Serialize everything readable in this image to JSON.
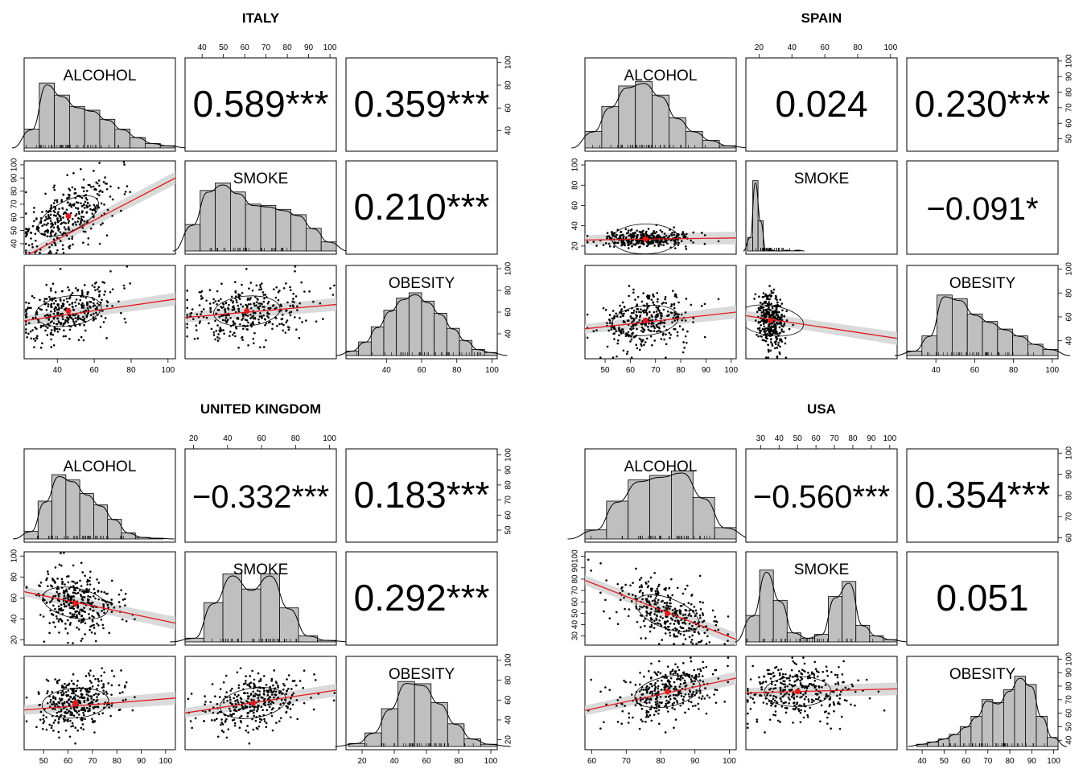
{
  "chart_data": [
    {
      "type": "scatter",
      "title": "ITALY",
      "variables": [
        "ALCOHOL",
        "SMOKE",
        "OBESITY"
      ],
      "correlations": [
        {
          "pair": [
            "ALCOHOL",
            "SMOKE"
          ],
          "label": "0.589***"
        },
        {
          "pair": [
            "ALCOHOL",
            "OBESITY"
          ],
          "label": "0.359***"
        },
        {
          "pair": [
            "SMOKE",
            "OBESITY"
          ],
          "label": "0.210***"
        }
      ],
      "axes": {
        "ALCOHOL": {
          "range": [
            22,
            104
          ],
          "ticks": [
            40,
            60,
            80,
            100
          ]
        },
        "SMOKE": {
          "range": [
            32,
            103
          ],
          "ticks": [
            40,
            50,
            60,
            70,
            80,
            90,
            100
          ]
        },
        "OBESITY": {
          "range": [
            17,
            103
          ],
          "ticks": [
            40,
            60,
            80,
            100
          ]
        }
      },
      "dist": {
        "ALCOHOL": {
          "mean": 46,
          "sd": 13
        },
        "SMOKE": {
          "mean": 61,
          "sd": 14
        },
        "OBESITY": {
          "mean": 61,
          "sd": 14
        }
      },
      "histograms": {
        "ALCOHOL": [
          0.25,
          0.86,
          0.7,
          0.55,
          0.5,
          0.38,
          0.25,
          0.14,
          0.06,
          0.03
        ],
        "SMOKE": [
          0.35,
          0.8,
          0.9,
          0.78,
          0.62,
          0.6,
          0.55,
          0.48,
          0.3,
          0.12
        ],
        "OBESITY": [
          0.06,
          0.18,
          0.38,
          0.6,
          0.76,
          0.83,
          0.72,
          0.56,
          0.36,
          0.2,
          0.08,
          0.04
        ]
      },
      "fit": {
        "ALCOHOL-SMOKE": [
          30,
          90
        ],
        "ALCOHOL-OBESITY": [
          52,
          72
        ],
        "SMOKE-OBESITY": [
          55,
          67
        ]
      },
      "centroid": {
        "ALCOHOL": 46,
        "SMOKE": 61,
        "OBESITY": 61
      },
      "seed": 11
    },
    {
      "type": "scatter",
      "title": "SPAIN",
      "variables": [
        "ALCOHOL",
        "SMOKE",
        "OBESITY"
      ],
      "correlations": [
        {
          "pair": [
            "ALCOHOL",
            "SMOKE"
          ],
          "label": "0.024"
        },
        {
          "pair": [
            "ALCOHOL",
            "OBESITY"
          ],
          "label": "0.230***"
        },
        {
          "pair": [
            "SMOKE",
            "OBESITY"
          ],
          "label": "−0.091*"
        }
      ],
      "axes": {
        "ALCOHOL": {
          "range": [
            42,
            102
          ],
          "ticks": [
            50,
            60,
            70,
            80,
            90,
            100
          ]
        },
        "SMOKE": {
          "range": [
            12,
            104
          ],
          "ticks": [
            20,
            40,
            60,
            80,
            100
          ]
        },
        "OBESITY": {
          "range": [
            25,
            103
          ],
          "ticks": [
            40,
            60,
            80,
            100
          ]
        }
      },
      "dist": {
        "ALCOHOL": {
          "mean": 66,
          "sd": 9
        },
        "SMOKE": {
          "mean": 27,
          "sd": 4
        },
        "OBESITY": {
          "mean": 57,
          "sd": 12
        }
      },
      "histograms": {
        "ALCOHOL": [
          0.22,
          0.55,
          0.82,
          0.88,
          0.7,
          0.4,
          0.22,
          0.1,
          0.03
        ],
        "SMOKE": [
          0.18,
          0.93,
          0.4,
          0.02,
          0.01,
          0.0,
          0.0,
          0.01,
          0.0,
          0.01
        ],
        "OBESITY": [
          0.06,
          0.26,
          0.8,
          0.75,
          0.55,
          0.45,
          0.35,
          0.26,
          0.15,
          0.08
        ]
      },
      "fit": {
        "ALCOHOL-SMOKE": [
          26,
          28
        ],
        "ALCOHOL-OBESITY": [
          50,
          64
        ],
        "SMOKE-OBESITY": [
          61,
          42
        ]
      },
      "centroid": {
        "ALCOHOL": 66,
        "SMOKE": 27,
        "OBESITY": 57
      },
      "seed": 29
    },
    {
      "type": "scatter",
      "title": "UNITED KINGDOM",
      "variables": [
        "ALCOHOL",
        "SMOKE",
        "OBESITY"
      ],
      "correlations": [
        {
          "pair": [
            "ALCOHOL",
            "SMOKE"
          ],
          "label": "−0.332***"
        },
        {
          "pair": [
            "ALCOHOL",
            "OBESITY"
          ],
          "label": "0.183***"
        },
        {
          "pair": [
            "SMOKE",
            "OBESITY"
          ],
          "label": "0.292***"
        }
      ],
      "axes": {
        "ALCOHOL": {
          "range": [
            42,
            104
          ],
          "ticks": [
            50,
            60,
            70,
            80,
            90,
            100
          ]
        },
        "SMOKE": {
          "range": [
            15,
            104
          ],
          "ticks": [
            20,
            40,
            60,
            80,
            100
          ]
        },
        "OBESITY": {
          "range": [
            10,
            104
          ],
          "ticks": [
            20,
            40,
            60,
            80,
            100
          ]
        }
      },
      "dist": {
        "ALCOHOL": {
          "mean": 63,
          "sd": 8
        },
        "SMOKE": {
          "mean": 55,
          "sd": 15
        },
        "OBESITY": {
          "mean": 57,
          "sd": 13
        }
      },
      "histograms": {
        "ALCOHOL": [
          0.1,
          0.5,
          0.85,
          0.78,
          0.6,
          0.45,
          0.26,
          0.08,
          0.02,
          0.01
        ],
        "SMOKE": [
          0.05,
          0.52,
          0.9,
          0.7,
          0.9,
          0.45,
          0.08,
          0.02
        ],
        "OBESITY": [
          0.04,
          0.18,
          0.5,
          0.86,
          0.83,
          0.58,
          0.3,
          0.1,
          0.03
        ]
      },
      "fit": {
        "ALCOHOL-SMOKE": [
          66,
          36
        ],
        "ALCOHOL-OBESITY": [
          50,
          62
        ],
        "SMOKE-OBESITY": [
          47,
          70
        ]
      },
      "centroid": {
        "ALCOHOL": 63,
        "SMOKE": 55,
        "OBESITY": 57
      },
      "seed": 47
    },
    {
      "type": "scatter",
      "title": "USA",
      "variables": [
        "ALCOHOL",
        "SMOKE",
        "OBESITY"
      ],
      "correlations": [
        {
          "pair": [
            "ALCOHOL",
            "SMOKE"
          ],
          "label": "−0.560***"
        },
        {
          "pair": [
            "ALCOHOL",
            "OBESITY"
          ],
          "label": "0.354***"
        },
        {
          "pair": [
            "SMOKE",
            "OBESITY"
          ],
          "label": "0.051"
        }
      ],
      "axes": {
        "ALCOHOL": {
          "range": [
            58,
            102
          ],
          "ticks": [
            60,
            70,
            80,
            90,
            100
          ]
        },
        "SMOKE": {
          "range": [
            22,
            104
          ],
          "ticks": [
            30,
            40,
            50,
            60,
            70,
            80,
            90,
            100
          ]
        },
        "OBESITY": {
          "range": [
            33,
            102
          ],
          "ticks": [
            40,
            50,
            60,
            70,
            80,
            90,
            100
          ]
        }
      },
      "dist": {
        "ALCOHOL": {
          "mean": 82,
          "sd": 7
        },
        "SMOKE": {
          "mean": 50,
          "sd": 16
        },
        "OBESITY": {
          "mean": 76,
          "sd": 11
        }
      },
      "histograms": {
        "ALCOHOL": [
          0.12,
          0.5,
          0.78,
          0.84,
          0.9,
          0.55,
          0.15
        ],
        "SMOKE": [
          0.35,
          0.95,
          0.55,
          0.12,
          0.05,
          0.1,
          0.6,
          0.8,
          0.22,
          0.08,
          0.03
        ],
        "OBESITY": [
          0.03,
          0.06,
          0.1,
          0.16,
          0.26,
          0.4,
          0.62,
          0.58,
          0.75,
          0.93,
          0.82,
          0.4,
          0.12
        ]
      },
      "fit": {
        "ALCOHOL-SMOKE": [
          79,
          27
        ],
        "ALCOHOL-OBESITY": [
          62,
          86
        ],
        "SMOKE-OBESITY": [
          75,
          78
        ]
      },
      "centroid": {
        "ALCOHOL": 82,
        "SMOKE": 50,
        "OBESITY": 76
      },
      "seed": 83
    }
  ]
}
